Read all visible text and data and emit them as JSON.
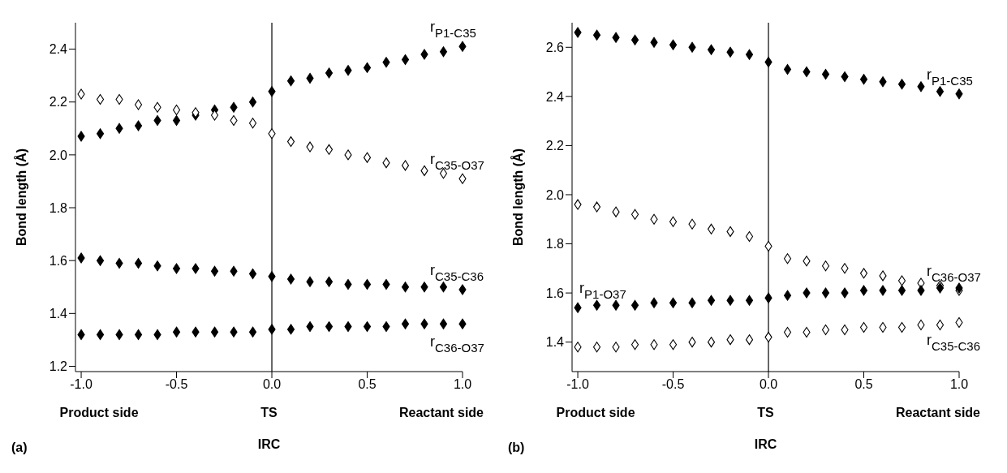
{
  "chart_data": [
    {
      "type": "scatter",
      "xlabel": "IRC",
      "ylabel": "Bond length (Å)",
      "marker": "diamond",
      "x": [
        -1.0,
        -0.9,
        -0.8,
        -0.7,
        -0.6,
        -0.5,
        -0.4,
        -0.3,
        -0.2,
        -0.1,
        0.0,
        0.1,
        0.2,
        0.3,
        0.4,
        0.5,
        0.6,
        0.7,
        0.8,
        0.9,
        1.0
      ],
      "xlim": [
        -1.03,
        1.0
      ],
      "xticks": [
        {
          "value": -1,
          "label": "-1.0"
        },
        {
          "value": -0.5,
          "label": "-0.5"
        },
        {
          "value": 0,
          "label": "0.0"
        },
        {
          "value": 0.5,
          "label": "0.5"
        },
        {
          "value": 1,
          "label": "1.0"
        }
      ],
      "ylim": [
        1.18,
        2.5
      ],
      "yticks": [
        {
          "value": 1.2,
          "label": "1.2"
        },
        {
          "value": 1.4,
          "label": "1.4"
        },
        {
          "value": 1.6,
          "label": "1.6"
        },
        {
          "value": 1.8,
          "label": "1.8"
        },
        {
          "value": 2.0,
          "label": "2.0"
        },
        {
          "value": 2.2,
          "label": "2.2"
        },
        {
          "value": 2.4,
          "label": "2.4"
        }
      ],
      "ref_lines": [
        {
          "axis": "x",
          "value": 0,
          "color": "#000000"
        }
      ],
      "annotations": [
        "Product side",
        "TS",
        "Reactant side",
        "(a)"
      ],
      "series": [
        {
          "name": "r$_{P1-C35}$",
          "color": "#000000",
          "values": [
            2.07,
            2.08,
            2.1,
            2.11,
            2.13,
            2.13,
            2.15,
            2.17,
            2.18,
            2.2,
            2.24,
            2.28,
            2.29,
            2.31,
            2.32,
            2.33,
            2.35,
            2.36,
            2.38,
            2.39,
            2.41
          ]
        },
        {
          "name": "r$_{C35-O37}$",
          "color": "#ffffff",
          "values": [
            2.23,
            2.21,
            2.21,
            2.19,
            2.18,
            2.17,
            2.16,
            2.15,
            2.13,
            2.12,
            2.08,
            2.05,
            2.03,
            2.02,
            2.0,
            1.99,
            1.97,
            1.96,
            1.94,
            1.93,
            1.91
          ]
        },
        {
          "name": "r$_{C35-C36}$",
          "color": "#000000",
          "values": [
            1.61,
            1.6,
            1.59,
            1.59,
            1.58,
            1.57,
            1.57,
            1.56,
            1.56,
            1.55,
            1.54,
            1.53,
            1.52,
            1.52,
            1.51,
            1.51,
            1.51,
            1.5,
            1.5,
            1.5,
            1.49
          ]
        },
        {
          "name": "r$_{C36-O37}$",
          "color": "#000000",
          "values": [
            1.32,
            1.32,
            1.32,
            1.32,
            1.32,
            1.33,
            1.33,
            1.33,
            1.33,
            1.33,
            1.34,
            1.34,
            1.35,
            1.35,
            1.35,
            1.35,
            1.35,
            1.36,
            1.36,
            1.36,
            1.36
          ]
        }
      ]
    },
    {
      "type": "scatter",
      "xlabel": "IRC",
      "ylabel": "Bond length (Å)",
      "marker": "diamond",
      "x": [
        -1.0,
        -0.9,
        -0.8,
        -0.7,
        -0.6,
        -0.5,
        -0.4,
        -0.3,
        -0.2,
        -0.1,
        0.0,
        0.1,
        0.2,
        0.3,
        0.4,
        0.5,
        0.6,
        0.7,
        0.8,
        0.9,
        1.0
      ],
      "xlim": [
        -1.03,
        1.0
      ],
      "xticks": [
        {
          "value": -1,
          "label": "-1.0"
        },
        {
          "value": -0.5,
          "label": "-0.5"
        },
        {
          "value": 0,
          "label": "0.0"
        },
        {
          "value": 0.5,
          "label": "0.5"
        },
        {
          "value": 1,
          "label": "1.0"
        }
      ],
      "ylim": [
        1.28,
        2.7
      ],
      "yticks": [
        {
          "value": 1.4,
          "label": "1.4"
        },
        {
          "value": 1.6,
          "label": "1.6"
        },
        {
          "value": 1.8,
          "label": "1.8"
        },
        {
          "value": 2.0,
          "label": "2.0"
        },
        {
          "value": 2.2,
          "label": "2.2"
        },
        {
          "value": 2.4,
          "label": "2.4"
        },
        {
          "value": 2.6,
          "label": "2.6"
        }
      ],
      "ref_lines": [
        {
          "axis": "x",
          "value": 0,
          "color": "#000000"
        }
      ],
      "annotations": [
        "Product side",
        "TS",
        "Reactant side",
        "(b)"
      ],
      "series": [
        {
          "name": "r$_{P1-C35}$",
          "color": "#000000",
          "values": [
            2.66,
            2.65,
            2.64,
            2.63,
            2.62,
            2.61,
            2.6,
            2.59,
            2.58,
            2.57,
            2.54,
            2.51,
            2.5,
            2.49,
            2.48,
            2.47,
            2.46,
            2.45,
            2.44,
            2.42,
            2.41
          ]
        },
        {
          "name": "r$_{C36-O37}$",
          "color": "#ffffff",
          "values": [
            1.96,
            1.95,
            1.93,
            1.92,
            1.9,
            1.89,
            1.88,
            1.86,
            1.85,
            1.83,
            1.79,
            1.74,
            1.73,
            1.71,
            1.7,
            1.68,
            1.67,
            1.65,
            1.64,
            1.63,
            1.61
          ]
        },
        {
          "name": "r$_{P1-O37}$",
          "color": "#000000",
          "values": [
            1.54,
            1.55,
            1.55,
            1.55,
            1.56,
            1.56,
            1.56,
            1.57,
            1.57,
            1.57,
            1.58,
            1.59,
            1.6,
            1.6,
            1.6,
            1.61,
            1.61,
            1.61,
            1.61,
            1.62,
            1.62
          ]
        },
        {
          "name": "r$_{C35-C36}$",
          "color": "#ffffff",
          "values": [
            1.38,
            1.38,
            1.38,
            1.39,
            1.39,
            1.39,
            1.4,
            1.4,
            1.41,
            1.41,
            1.42,
            1.44,
            1.44,
            1.45,
            1.45,
            1.46,
            1.46,
            1.46,
            1.47,
            1.47,
            1.48
          ]
        }
      ]
    }
  ]
}
